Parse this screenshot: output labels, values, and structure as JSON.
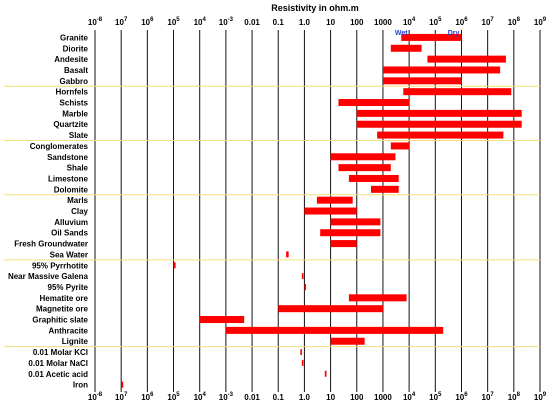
{
  "chart_data": {
    "type": "bar",
    "orientation": "horizontal-range",
    "title": "Resistivity in ohm.m",
    "xscale": "log",
    "xlim": [
      1e-08,
      1000000000.0
    ],
    "tick_labels": [
      "10-8",
      "107",
      "106",
      "105",
      "104",
      "10-3",
      "0.01",
      "0.1",
      "1.0",
      "10",
      "100",
      "1000",
      "104",
      "105",
      "106",
      "107",
      "108",
      "109"
    ],
    "tick_label_parts": [
      {
        "base": "10",
        "exp": "-8"
      },
      {
        "base": "10",
        "exp": "7"
      },
      {
        "base": "10",
        "exp": "6"
      },
      {
        "base": "10",
        "exp": "5"
      },
      {
        "base": "10",
        "exp": "4"
      },
      {
        "base": "10",
        "exp": "-3"
      },
      {
        "base": "0.01",
        "exp": ""
      },
      {
        "base": "0.1",
        "exp": ""
      },
      {
        "base": "1.0",
        "exp": ""
      },
      {
        "base": "10",
        "exp": ""
      },
      {
        "base": "100",
        "exp": ""
      },
      {
        "base": "1000",
        "exp": ""
      },
      {
        "base": "10",
        "exp": "4"
      },
      {
        "base": "10",
        "exp": "5"
      },
      {
        "base": "10",
        "exp": "6"
      },
      {
        "base": "10",
        "exp": "7"
      },
      {
        "base": "10",
        "exp": "8"
      },
      {
        "base": "10",
        "exp": "9"
      }
    ],
    "annotations": [
      {
        "text": "Wet",
        "x": 5000
      },
      {
        "text": "Dry",
        "x": 500000
      }
    ],
    "bar_color": "#ff0000",
    "separator_color": "#f2df7e",
    "group_separators_after": [
      "Gabbro",
      "Slate",
      "Dolomite",
      "Sea Water",
      "Lignite"
    ],
    "rows": [
      {
        "label": "Granite",
        "min": 5000,
        "max": 1000000
      },
      {
        "label": "Diorite",
        "min": 2000,
        "max": 30000
      },
      {
        "label": "Andesite",
        "min": 50000,
        "max": 50000000
      },
      {
        "label": "Basalt",
        "min": 1000,
        "max": 30000000
      },
      {
        "label": "Gabbro",
        "min": 1000,
        "max": 1000000
      },
      {
        "label": "Hornfels",
        "min": 6000,
        "max": 80000000
      },
      {
        "label": "Schists",
        "min": 20,
        "max": 10000
      },
      {
        "label": "Marble",
        "min": 100,
        "max": 200000000
      },
      {
        "label": "Quartzite",
        "min": 100,
        "max": 200000000
      },
      {
        "label": "Slate",
        "min": 600,
        "max": 40000000
      },
      {
        "label": "Conglomerates",
        "min": 2000,
        "max": 10000
      },
      {
        "label": "Sandstone",
        "min": 10,
        "max": 3000
      },
      {
        "label": "Shale",
        "min": 20,
        "max": 2000
      },
      {
        "label": "Limestone",
        "min": 50,
        "max": 4000
      },
      {
        "label": "Dolomite",
        "min": 350,
        "max": 4000
      },
      {
        "label": "Marls",
        "min": 3,
        "max": 70
      },
      {
        "label": "Clay",
        "min": 1,
        "max": 100
      },
      {
        "label": "Alluvium",
        "min": 10,
        "max": 800
      },
      {
        "label": "Oil Sands",
        "min": 4,
        "max": 800
      },
      {
        "label": "Fresh Groundwater",
        "min": 10,
        "max": 100
      },
      {
        "label": "Sea Water",
        "min": 0.2,
        "max": 0.25
      },
      {
        "label": "95% Pyrrhotite",
        "min": 1e-05,
        "max": 1.2e-05
      },
      {
        "label": "Near Massive Galena",
        "min": 0.8,
        "max": 0.9
      },
      {
        "label": "95% Pyrite",
        "min": 1.0,
        "max": 1.1
      },
      {
        "label": "Hematite ore",
        "min": 50,
        "max": 8000
      },
      {
        "label": "Magnetite ore",
        "min": 0.1,
        "max": 1000
      },
      {
        "label": "Graphitic slate",
        "min": 0.0001,
        "max": 0.005
      },
      {
        "label": "Anthracite",
        "min": 0.001,
        "max": 200000
      },
      {
        "label": "Lignite",
        "min": 10,
        "max": 200
      },
      {
        "label": "0.01 Molar KCl",
        "min": 0.7,
        "max": 0.8
      },
      {
        "label": "0.01 Molar NaCl",
        "min": 0.8,
        "max": 0.9
      },
      {
        "label": "0.01 Acetic acid",
        "min": 6,
        "max": 7
      },
      {
        "label": "Iron",
        "min": 1e-07,
        "max": 1.2e-07
      }
    ]
  }
}
